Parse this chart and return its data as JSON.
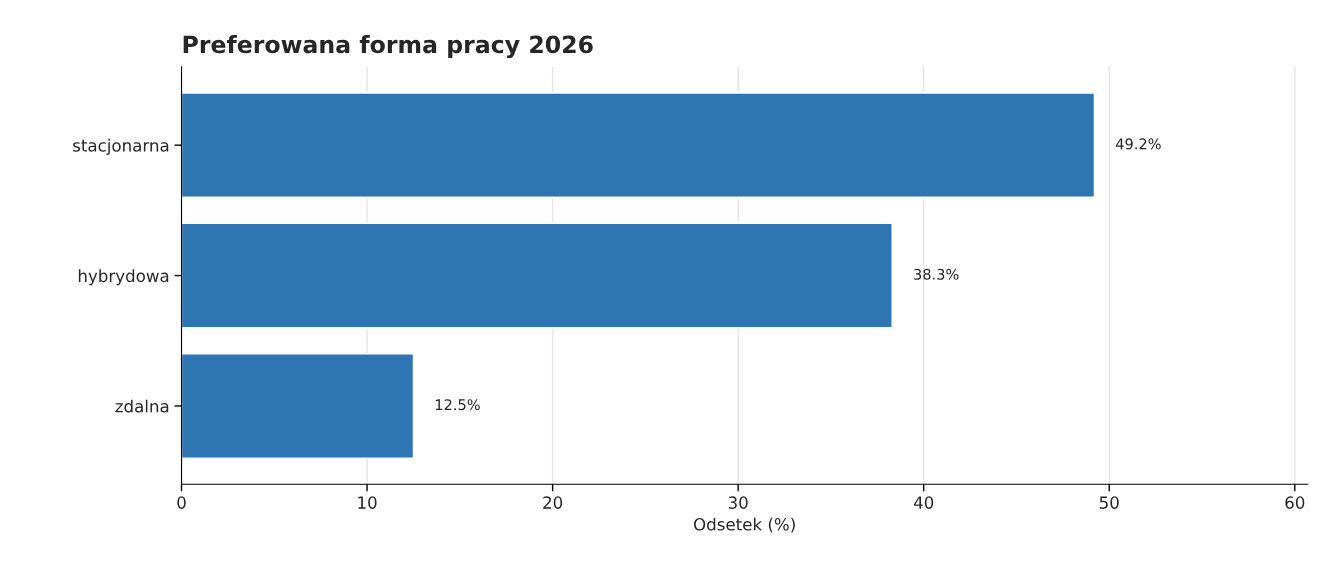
{
  "chart_data": {
    "type": "bar",
    "orientation": "horizontal",
    "title": "Preferowana forma pracy 2026",
    "xlabel": "Odsetek (%)",
    "categories": [
      "stacjonarna",
      "hybrydowa",
      "zdalna"
    ],
    "series": [
      {
        "color": "#2e75b4",
        "values": [
          49.2,
          38.3,
          12.5
        ],
        "value_labels": [
          "49.2%",
          "38.3%",
          "12.5%"
        ]
      }
    ],
    "xlim": [
      0,
      60.7
    ],
    "xticks": [
      0,
      10,
      20,
      30,
      40,
      50,
      60
    ],
    "grid": "x",
    "legend": false
  }
}
